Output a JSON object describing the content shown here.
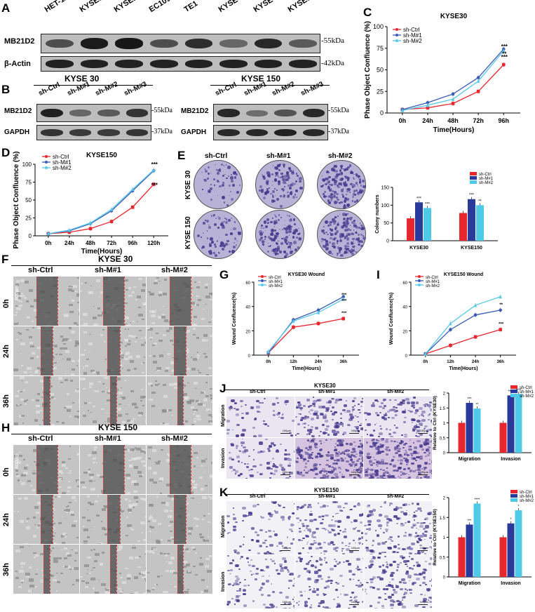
{
  "panels": {
    "A": "A",
    "B": "B",
    "C": "C",
    "D": "D",
    "E": "E",
    "F": "F",
    "G": "G",
    "H": "H",
    "I": "I",
    "J": "J",
    "K": "K"
  },
  "panelA": {
    "lanes": [
      "HET-1A",
      "KYSE30",
      "KYSE150",
      "EC109",
      "TE1",
      "KYSE450",
      "KYSE410",
      "KYSE510"
    ],
    "rows": [
      "MB21D2",
      "β-Actin"
    ],
    "markers": [
      "55kDa",
      "42kDa"
    ],
    "intensity": [
      [
        0.55,
        0.95,
        0.98,
        0.55,
        0.8,
        0.35,
        0.85,
        0.45
      ],
      [
        0.9,
        0.9,
        0.9,
        0.9,
        0.9,
        0.9,
        0.9,
        0.9
      ]
    ]
  },
  "panelB": {
    "blots": [
      {
        "title": "KYSE 30",
        "lanes": [
          "sh-Ctrl",
          "sh-M#1",
          "sh-M#2",
          "sh-M#3"
        ],
        "rows": [
          "MB21D2",
          "GAPDH"
        ],
        "markers": [
          "55kDa",
          "37kDa"
        ],
        "intensity": [
          [
            0.9,
            0.35,
            0.45,
            0.75
          ],
          [
            0.75,
            0.7,
            0.7,
            0.75
          ]
        ]
      },
      {
        "title": "KYSE 150",
        "lanes": [
          "sh-Ctrl",
          "sh-M#1",
          "sh-M#2",
          "sh-M#3"
        ],
        "rows": [
          "MB21D2",
          "GAPDH"
        ],
        "markers": [
          "55kDa",
          "37kDa"
        ],
        "intensity": [
          [
            0.85,
            0.3,
            0.5,
            0.85
          ],
          [
            0.85,
            0.85,
            0.9,
            0.85
          ]
        ]
      }
    ]
  },
  "chartC": {
    "chart_data": {
      "type": "line",
      "title": "KYSE30",
      "xlabel": "Time(Hours)",
      "ylabel": "Phase Object Confluence (%)",
      "categories": [
        "0h",
        "24h",
        "48h",
        "72h",
        "96h"
      ],
      "ylim": [
        0,
        100
      ],
      "yticks": [
        0,
        25,
        50,
        75,
        100
      ],
      "series": [
        {
          "name": "sh-Ctrl",
          "values": [
            4,
            6,
            11,
            25,
            56
          ]
        },
        {
          "name": "sh-M#1",
          "values": [
            4,
            12,
            22,
            41,
            74
          ]
        },
        {
          "name": "sh-M#2",
          "values": [
            3,
            9,
            16,
            37,
            72
          ]
        }
      ],
      "stars": [
        "***",
        "***",
        "**"
      ],
      "legend": "top-left"
    }
  },
  "chartD": {
    "chart_data": {
      "type": "line",
      "title": "KYSE150",
      "xlabel": "Time(Hours)",
      "ylabel": "Phase Object Confluence (%)",
      "categories": [
        "0h",
        "24h",
        "48h",
        "72h",
        "96h",
        "120h"
      ],
      "ylim": [
        0,
        100
      ],
      "yticks": [
        0,
        25,
        50,
        75,
        100
      ],
      "series": [
        {
          "name": "sh-Ctrl",
          "values": [
            3,
            5,
            10,
            20,
            40,
            72
          ]
        },
        {
          "name": "sh-M#1",
          "values": [
            3,
            7,
            17,
            35,
            63,
            91
          ]
        },
        {
          "name": "sh-M#2",
          "values": [
            3,
            8,
            18,
            37,
            65,
            92
          ]
        }
      ],
      "stars": [
        "***",
        "***"
      ],
      "legend": "top-left"
    }
  },
  "panelE": {
    "cols": [
      "sh-Ctrl",
      "sh-M#1",
      "sh-M#2"
    ],
    "rows": [
      "KYSE 30",
      "KYSE 150"
    ],
    "chart_data": {
      "type": "bar",
      "xlabel": "",
      "ylabel": "Colony numbers",
      "categories": [
        "KYSE30",
        "KYSE150"
      ],
      "ylim": [
        0,
        150
      ],
      "yticks": [
        0,
        50,
        100,
        150
      ],
      "series": [
        {
          "name": "sh-Ctrl",
          "values": [
            63,
            78
          ]
        },
        {
          "name": "sh-M#1",
          "values": [
            108,
            117
          ]
        },
        {
          "name": "sh-M#2",
          "values": [
            92,
            100
          ]
        }
      ],
      "stars": [
        [
          "",
          "***",
          "***"
        ],
        [
          "",
          "***",
          "**"
        ]
      ]
    }
  },
  "panelF": {
    "title": "KYSE 30",
    "cols": [
      "sh-Ctrl",
      "sh-M#1",
      "sh-M#2"
    ],
    "rows": [
      "0h",
      "24h",
      "36h"
    ],
    "scale": "800μm"
  },
  "panelH": {
    "title": "KYSE 150",
    "cols": [
      "sh-Ctrl",
      "sh-M#1",
      "sh-M#2"
    ],
    "rows": [
      "0h",
      "24h",
      "36h"
    ],
    "scale": "800μm"
  },
  "chartG": {
    "chart_data": {
      "type": "line",
      "title": "KYSE30 Wound",
      "xlabel": "Time(Hours)",
      "ylabel": "Wound Confluence(%)",
      "categories": [
        "0h",
        "12h",
        "24h",
        "36h"
      ],
      "ylim": [
        0,
        60
      ],
      "yticks": [
        0,
        20,
        40,
        60
      ],
      "series": [
        {
          "name": "sh-Ctrl",
          "values": [
            2,
            23,
            26,
            30
          ]
        },
        {
          "name": "sh-M#1",
          "values": [
            2,
            29,
            37,
            48
          ]
        },
        {
          "name": "sh-M#2",
          "values": [
            3,
            28,
            35,
            46
          ]
        }
      ],
      "stars": [
        "***",
        "***",
        "***"
      ],
      "legend": "top-left"
    }
  },
  "chartI": {
    "chart_data": {
      "type": "line",
      "title": "KYSE150 Wound",
      "xlabel": "Time(Hours)",
      "ylabel": "Wound Confluence(%)",
      "categories": [
        "0h",
        "12h",
        "24h",
        "36h"
      ],
      "ylim": [
        0,
        60
      ],
      "yticks": [
        0,
        20,
        40,
        60
      ],
      "series": [
        {
          "name": "sh-Ctrl",
          "values": [
            1,
            8,
            15,
            21
          ]
        },
        {
          "name": "sh-M#1",
          "values": [
            1,
            21,
            33,
            37
          ]
        },
        {
          "name": "sh-M#2",
          "values": [
            1,
            26,
            41,
            48
          ]
        }
      ],
      "stars": [
        "**",
        "***"
      ],
      "legend": "top-left"
    }
  },
  "panelJ": {
    "title": "KYSE30",
    "cols": [
      "sh-Ctrl",
      "sh-M#1",
      "sh-M#2"
    ],
    "rows": [
      "Migration",
      "Invasion"
    ],
    "scalebar": "100μm",
    "chart_data": {
      "type": "bar",
      "xlabel": "",
      "ylabel": "Relative to Ctrl (KYSE30)",
      "categories": [
        "Migration",
        "Invasion"
      ],
      "ylim": [
        0,
        2.0
      ],
      "yticks": [
        0,
        0.5,
        1.0,
        1.5,
        2.0
      ],
      "series": [
        {
          "name": "sh-Ctrl",
          "values": [
            1.0,
            1.0
          ]
        },
        {
          "name": "sh-M#1",
          "values": [
            1.67,
            1.92
          ]
        },
        {
          "name": "sh-M#2",
          "values": [
            1.48,
            1.97
          ]
        }
      ],
      "stars": [
        [
          "",
          "***",
          "**"
        ],
        [
          "",
          "****",
          "****"
        ]
      ]
    }
  },
  "panelK": {
    "title": "KYSE150",
    "cols": [
      "sh-Ctrl",
      "sh-M#1",
      "sh-M#2"
    ],
    "rows": [
      "Migration",
      "Invasion"
    ],
    "scalebar": "100μm",
    "chart_data": {
      "type": "bar",
      "xlabel": "",
      "ylabel": "Relative to Ctrl (KYSE150)",
      "categories": [
        "Migration",
        "Invasion"
      ],
      "ylim": [
        0,
        2.0
      ],
      "yticks": [
        0,
        0.5,
        1.0,
        1.5,
        2.0
      ],
      "series": [
        {
          "name": "sh-Ctrl",
          "values": [
            1.0,
            1.0
          ]
        },
        {
          "name": "sh-M#1",
          "values": [
            1.32,
            1.35
          ]
        },
        {
          "name": "sh-M#2",
          "values": [
            1.85,
            1.68
          ]
        }
      ],
      "stars": [
        [
          "",
          "***",
          "****"
        ],
        [
          "",
          "*",
          "*"
        ]
      ]
    }
  },
  "colors": {
    "ctrl": "#e8262d",
    "m1": "#2a3a9a",
    "m2": "#4ec9e8",
    "ctrlLine": "#e8262d",
    "m1Line": "#3b5bb5",
    "m2Line": "#58c9e6",
    "stain": "#4a3d8f",
    "dish": "#b7b2d6",
    "micro": "#c4c4c4"
  }
}
